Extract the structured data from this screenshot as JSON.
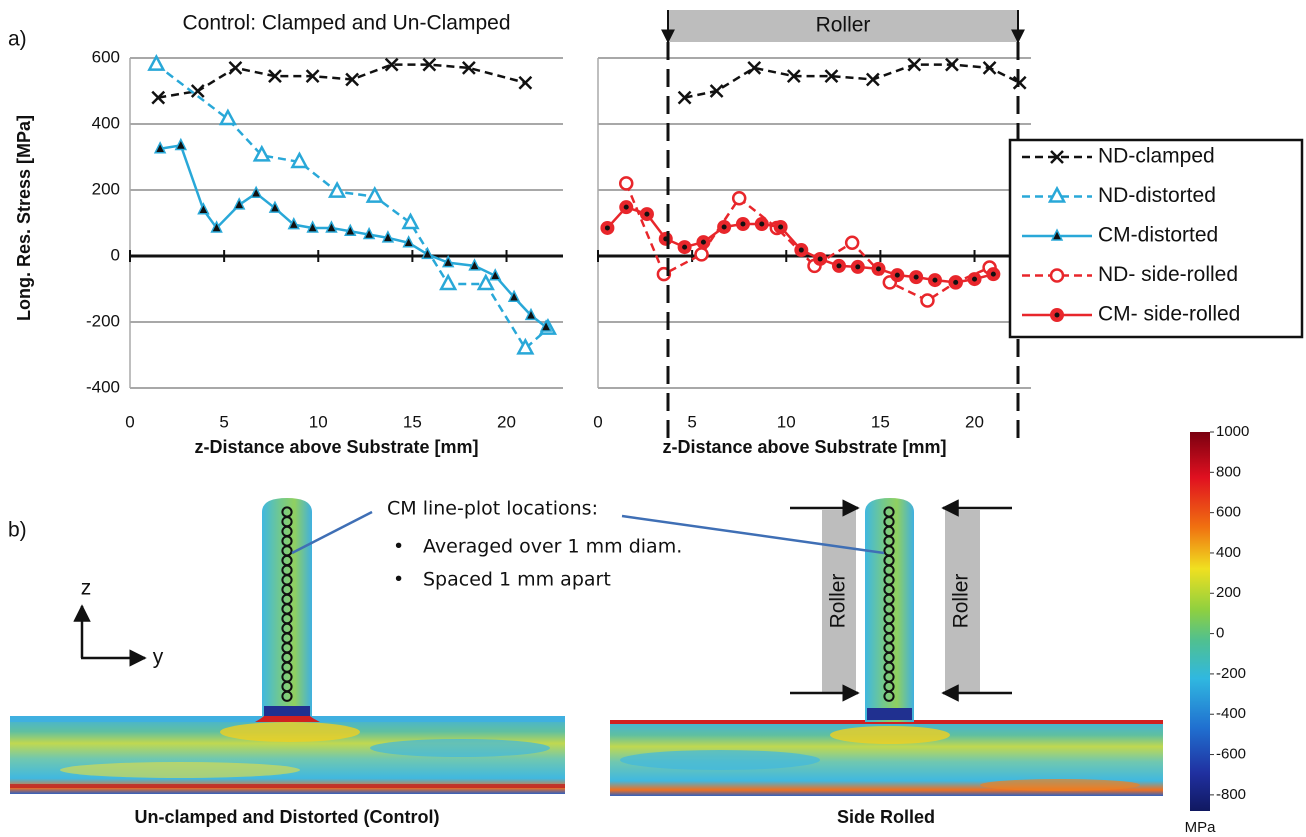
{
  "panel_labels": [
    "a)",
    "b)"
  ],
  "chart_data": [
    {
      "type": "line",
      "title": "Control: Clamped and Un-Clamped",
      "xlabel": "z-Distance above Substrate [mm]",
      "ylabel": "Long. Res. Stress [MPa]",
      "xlim": [
        0,
        23
      ],
      "ylim": [
        -400,
        600
      ],
      "xticks": [
        0,
        5,
        10,
        15,
        20
      ],
      "yticks": [
        -400,
        -200,
        0,
        200,
        400,
        600
      ],
      "grid": true,
      "show_ytick_labels": true,
      "series": [
        {
          "name": "ND-clamped",
          "color": "#111111",
          "linestyle": "dashed",
          "marker": "x",
          "x": [
            1.5,
            3.6,
            5.6,
            7.7,
            9.7,
            11.8,
            13.9,
            15.9,
            18.0,
            21.0
          ],
          "values": [
            480,
            500,
            570,
            545,
            545,
            535,
            580,
            580,
            570,
            525
          ]
        },
        {
          "name": "ND-distorted",
          "color": "#29a8d8",
          "linestyle": "dashed",
          "marker": "triangle-open",
          "x": [
            1.4,
            5.2,
            7.0,
            9.0,
            11.0,
            13.0,
            14.9,
            16.9,
            18.9,
            21.0,
            22.2
          ],
          "values": [
            580,
            415,
            305,
            285,
            195,
            180,
            100,
            -85,
            -85,
            -280,
            -220
          ]
        },
        {
          "name": "CM-distorted",
          "color": "#29a8d8",
          "linestyle": "solid",
          "marker": "triangle",
          "x": [
            1.6,
            2.7,
            3.9,
            4.6,
            5.8,
            6.7,
            7.7,
            8.7,
            9.7,
            10.7,
            11.7,
            12.7,
            13.7,
            14.8,
            15.8,
            16.9,
            18.3,
            19.4,
            20.4,
            21.3,
            22.1
          ],
          "values": [
            325,
            335,
            140,
            85,
            155,
            190,
            145,
            95,
            85,
            85,
            75,
            65,
            55,
            40,
            5,
            -20,
            -30,
            -60,
            -125,
            -180,
            -215
          ]
        }
      ]
    },
    {
      "type": "line",
      "annotation": "Roller",
      "xlabel": "z-Distance above Substrate [mm]",
      "xlim": [
        0,
        23
      ],
      "ylim": [
        -400,
        600
      ],
      "xticks": [
        0,
        5,
        10,
        15,
        20
      ],
      "yticks": [
        -400,
        -200,
        0,
        200,
        400,
        600
      ],
      "grid": true,
      "show_ytick_labels": false,
      "legend": "right",
      "series": [
        {
          "color": "#111111",
          "linestyle": "dashed",
          "marker": "x",
          "x": [
            4.6,
            6.3,
            8.3,
            10.4,
            12.4,
            14.6,
            16.8,
            18.8,
            20.8,
            22.4
          ],
          "values": [
            480,
            500,
            570,
            545,
            545,
            535,
            580,
            580,
            570,
            525
          ]
        },
        {
          "name": "ND- side-rolled",
          "color": "#e8262b",
          "linestyle": "dashed",
          "marker": "circle-open",
          "x": [
            1.5,
            3.5,
            5.5,
            7.5,
            9.5,
            11.5,
            13.5,
            15.5,
            17.5,
            19.0,
            20.8
          ],
          "values": [
            220,
            -55,
            5,
            175,
            85,
            -30,
            40,
            -80,
            -135,
            -80,
            -35
          ]
        },
        {
          "name": "CM- side-rolled",
          "color": "#e8262b",
          "linestyle": "solid",
          "marker": "circle-dot",
          "x": [
            0.5,
            1.5,
            2.6,
            3.6,
            4.6,
            5.6,
            6.7,
            7.7,
            8.7,
            9.7,
            10.8,
            11.8,
            12.8,
            13.8,
            14.9,
            15.9,
            16.9,
            17.9,
            19.0,
            20.0,
            21.0
          ],
          "values": [
            85,
            148,
            127,
            52,
            27,
            42,
            88,
            97,
            97,
            88,
            18,
            -9,
            -30,
            -33,
            -39,
            -58,
            -64,
            -73,
            -80,
            -70,
            -55
          ]
        }
      ]
    }
  ],
  "figure_b": {
    "callout": {
      "title": "CM line-plot locations:",
      "bullets": [
        "Averaged over 1 mm diam.",
        "Spaced 1 mm apart"
      ]
    },
    "axes": {
      "vertical": "z",
      "horizontal": "y"
    },
    "roller_labels": [
      "Roller",
      "Roller"
    ],
    "captions": [
      "Un-clamped and Distorted (Control)",
      "Side Rolled"
    ]
  },
  "colorbar": {
    "lim": [
      -880,
      1000
    ],
    "ticks": [
      1000,
      800,
      600,
      400,
      200,
      0,
      -200,
      -400,
      -600,
      -800
    ],
    "unit": "MPa"
  }
}
